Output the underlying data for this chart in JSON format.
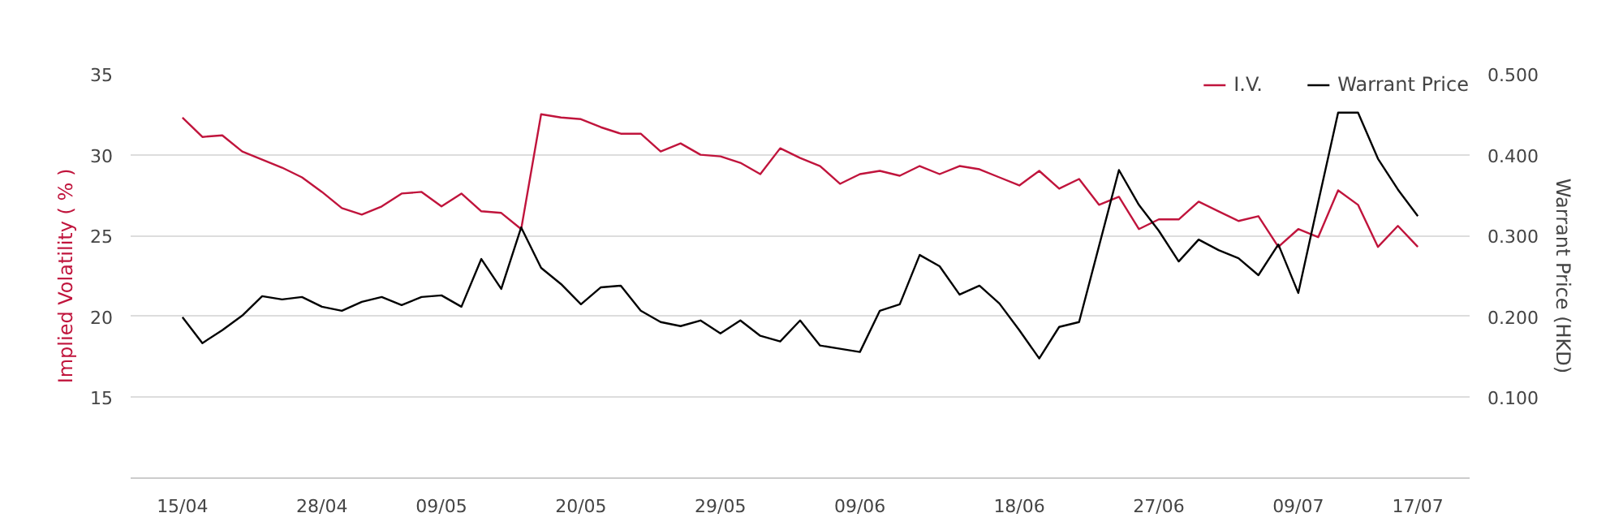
{
  "chart_data": {
    "type": "line",
    "categories": [
      "15/04",
      null,
      null,
      null,
      null,
      null,
      null,
      "28/04",
      null,
      null,
      null,
      null,
      null,
      "09/05",
      null,
      null,
      null,
      null,
      null,
      null,
      "20/05",
      null,
      null,
      null,
      null,
      null,
      null,
      "29/05",
      null,
      null,
      null,
      null,
      null,
      null,
      "09/06",
      null,
      null,
      null,
      null,
      null,
      null,
      null,
      "18/06",
      null,
      null,
      null,
      null,
      null,
      null,
      "27/06",
      null,
      null,
      null,
      null,
      null,
      null,
      "09/07",
      null,
      null,
      null,
      null,
      null,
      "17/07"
    ],
    "series": [
      {
        "name": "I.V.",
        "color": "#c0143c",
        "values": [
          32.3,
          31.1,
          31.2,
          30.2,
          29.7,
          29.2,
          28.6,
          27.7,
          26.7,
          26.3,
          26.8,
          27.6,
          27.7,
          26.8,
          27.6,
          26.5,
          26.4,
          25.4,
          32.5,
          32.3,
          32.2,
          31.7,
          31.3,
          31.3,
          30.2,
          30.7,
          30.0,
          29.9,
          29.5,
          28.8,
          30.4,
          29.8,
          29.3,
          28.2,
          28.8,
          29.0,
          28.7,
          29.3,
          28.8,
          29.3,
          29.1,
          28.6,
          28.1,
          29.0,
          27.9,
          28.5,
          26.9,
          27.4,
          25.4,
          26.0,
          26.0,
          27.1,
          26.5,
          25.9,
          26.2,
          24.3,
          25.4,
          24.9,
          27.8,
          26.9,
          24.3,
          25.6,
          24.3
        ]
      },
      {
        "name": "Warrant Price",
        "color": "#000000",
        "axis": "y2",
        "values": [
          0.199,
          0.167,
          0.183,
          0.201,
          0.225,
          0.221,
          0.224,
          0.212,
          0.207,
          0.218,
          0.224,
          0.214,
          0.224,
          0.226,
          0.212,
          0.271,
          0.234,
          0.31,
          0.26,
          0.24,
          0.215,
          0.236,
          0.238,
          0.207,
          0.193,
          0.188,
          0.195,
          0.179,
          0.195,
          0.176,
          0.169,
          0.195,
          0.164,
          0.16,
          0.156,
          0.207,
          0.215,
          0.276,
          0.262,
          0.227,
          0.238,
          0.216,
          0.183,
          0.148,
          0.187,
          0.193,
          0.287,
          0.381,
          0.338,
          0.306,
          0.268,
          0.295,
          0.282,
          0.272,
          0.251,
          0.289,
          0.229,
          0.341,
          0.452,
          0.452,
          0.395,
          0.357,
          0.324
        ]
      }
    ],
    "ylabel": "Implied Volatility ( % )",
    "y2label": "Warrant Price (HKD)",
    "ylim": [
      10,
      35
    ],
    "yticks": [
      15,
      20,
      25,
      30,
      35
    ],
    "y2lim": [
      0,
      0.5
    ],
    "y2ticks": [
      {
        "value": 0.1,
        "label": "0.100"
      },
      {
        "value": 0.2,
        "label": "0.200"
      },
      {
        "value": 0.3,
        "label": "0.300"
      },
      {
        "value": 0.4,
        "label": "0.400"
      },
      {
        "value": 0.5,
        "label": "0.500"
      }
    ],
    "grid": "y",
    "legend": "top right",
    "marker": "none",
    "line_style": "solid"
  }
}
